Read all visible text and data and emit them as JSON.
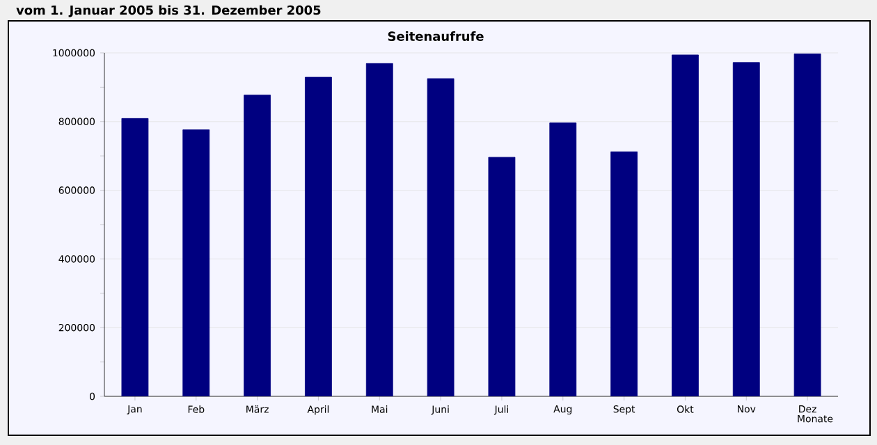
{
  "chart_data": {
    "type": "bar",
    "title": "vom 1. Januar 2005  bis 31. Dezember 2005",
    "subtitle": "Seitenaufrufe",
    "xlabel": "Monate",
    "categories": [
      "Jan",
      "Feb",
      "März",
      "April",
      "Mai",
      "Juni",
      "Juli",
      "Aug",
      "Sept",
      "Okt",
      "Nov",
      "Dez"
    ],
    "values": [
      809000,
      776000,
      877000,
      929000,
      969000,
      925000,
      696000,
      796000,
      712000,
      994000,
      972000,
      997000
    ],
    "color": "#000080",
    "ylim": [
      0,
      1000000
    ],
    "yticks": [
      0,
      200000,
      400000,
      600000,
      800000,
      1000000
    ],
    "grid": "y"
  }
}
